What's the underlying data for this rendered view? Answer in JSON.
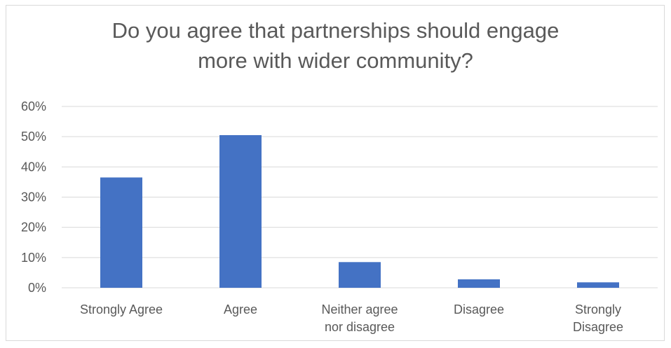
{
  "chart_data": {
    "type": "bar",
    "title": "Do you agree that partnerships should engage\nmore with wider community?",
    "categories": [
      [
        "Strongly Agree"
      ],
      [
        "Agree"
      ],
      [
        "Neither agree",
        "nor disagree"
      ],
      [
        "Disagree"
      ],
      [
        "Strongly",
        "Disagree"
      ]
    ],
    "values": [
      0.365,
      0.505,
      0.085,
      0.028,
      0.018
    ],
    "y_ticks": [
      "0%",
      "10%",
      "20%",
      "30%",
      "40%",
      "50%",
      "60%"
    ],
    "ylim": [
      0,
      0.6
    ],
    "grid": true,
    "legend": "none",
    "bar_color": "#4472c4",
    "grid_color": "#d9d9d9",
    "text_color": "#595959"
  }
}
